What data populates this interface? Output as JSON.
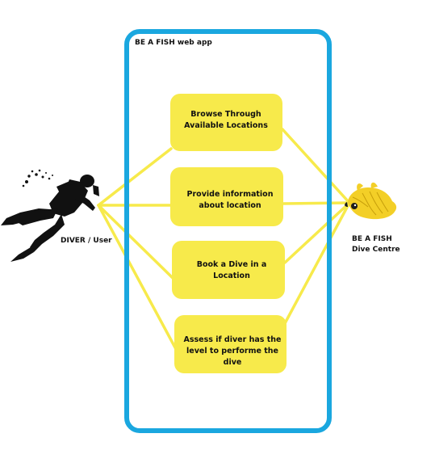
{
  "system": {
    "title": "BE A FISH web app"
  },
  "actors": {
    "diver": {
      "label": "DIVER / User",
      "icon": "scuba-diver-icon"
    },
    "dive_centre": {
      "label_line1": "BE A FISH",
      "label_line2": "Dive Centre",
      "icon": "fish-icon"
    }
  },
  "use_cases": [
    {
      "line1": "Browse Through",
      "line2": "Available Locations",
      "line3": ""
    },
    {
      "line1": "Provide information",
      "line2": "about location",
      "line3": ""
    },
    {
      "line1": "Book a Dive in a",
      "line2": "Location",
      "line3": ""
    },
    {
      "line1": "Assess if diver has the",
      "line2": "level to performe the",
      "line3": "dive"
    }
  ],
  "colors": {
    "boundary": "#1aa7df",
    "use_case_fill": "#f7ea4b",
    "connector": "#f7ea4b",
    "fish": "#f3cf27",
    "ink": "#111111"
  }
}
